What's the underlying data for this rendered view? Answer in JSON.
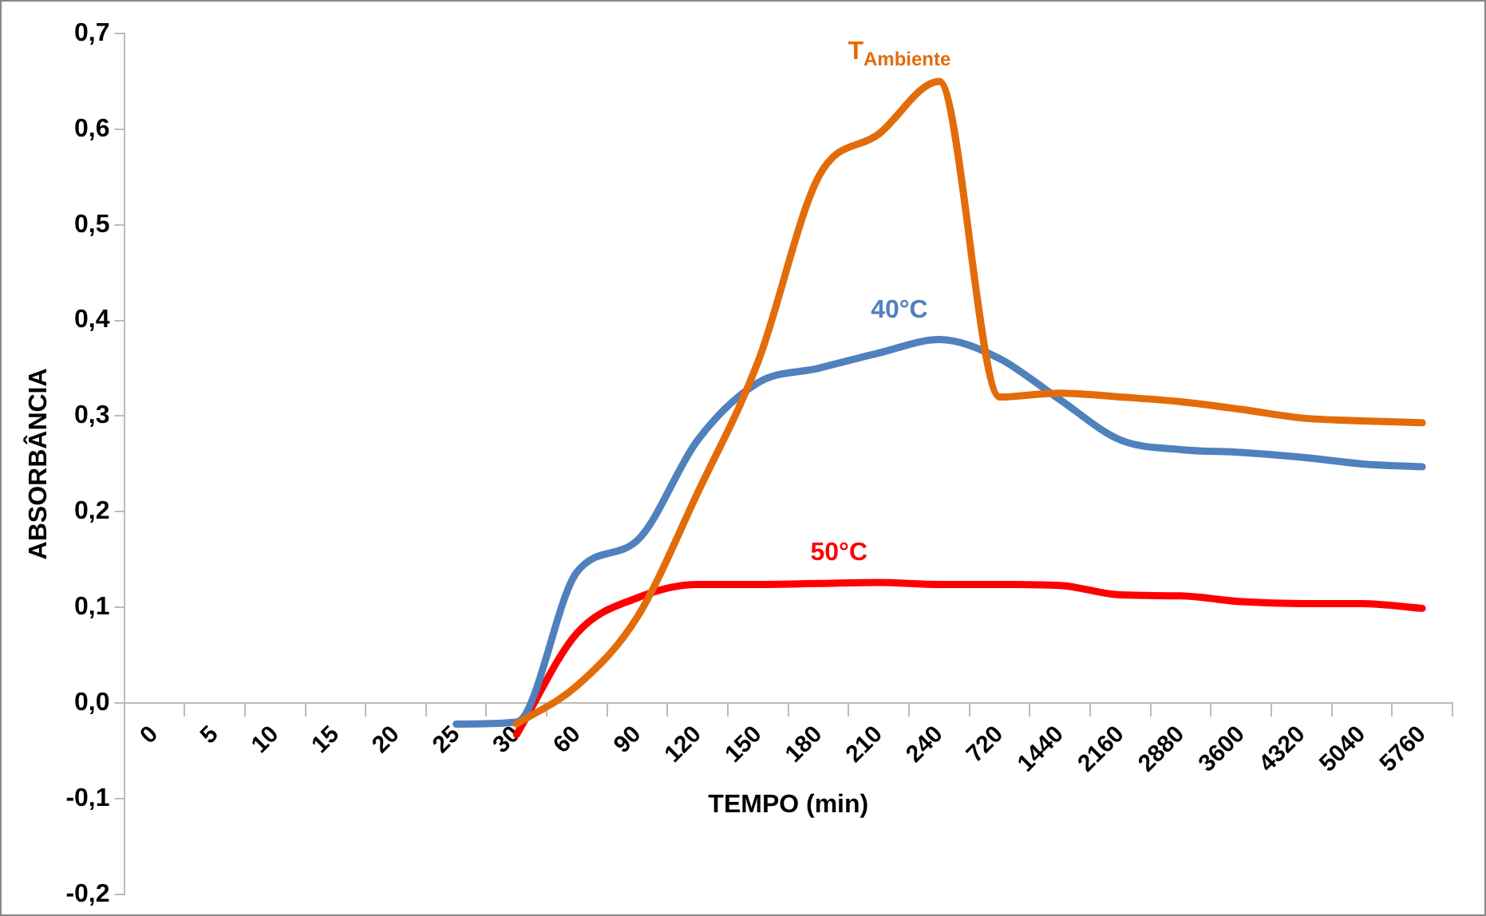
{
  "chart_data": {
    "type": "line",
    "xlabel": "TEMPO (min)",
    "ylabel": "ABSORBÂNCIA",
    "categories": [
      "0",
      "5",
      "10",
      "15",
      "20",
      "25",
      "30",
      "60",
      "90",
      "120",
      "150",
      "180",
      "210",
      "240",
      "720",
      "1440",
      "2160",
      "2880",
      "3600",
      "4320",
      "5040",
      "5760"
    ],
    "series": [
      {
        "name": "T$_{Ambiente}$",
        "color": "#e36c0a",
        "values": [
          null,
          null,
          null,
          null,
          null,
          null,
          -0.022,
          0.018,
          0.09,
          0.22,
          0.357,
          0.55,
          0.595,
          0.65,
          0.32,
          0.324,
          0.32,
          0.315,
          0.307,
          0.298,
          0.295,
          0.293
        ]
      },
      {
        "name": "40°C",
        "color": "#4f81bd",
        "values": [
          null,
          null,
          null,
          null,
          null,
          -0.022,
          -0.02,
          0.137,
          0.17,
          0.275,
          0.335,
          0.35,
          0.366,
          0.38,
          0.36,
          0.317,
          0.275,
          0.265,
          0.262,
          0.257,
          0.25,
          0.247
        ]
      },
      {
        "name": "50°C",
        "color": "#ff0000",
        "values": [
          null,
          null,
          null,
          null,
          null,
          null,
          -0.033,
          0.073,
          0.11,
          0.124,
          0.124,
          0.125,
          0.126,
          0.124,
          0.124,
          0.123,
          0.113,
          0.112,
          0.106,
          0.104,
          0.104,
          0.099
        ]
      }
    ],
    "ylim": [
      -0.2,
      0.7
    ],
    "yticks": [
      {
        "value": -0.2,
        "label": "-0,2"
      },
      {
        "value": -0.1,
        "label": "-0,1"
      },
      {
        "value": 0,
        "label": "0,0"
      },
      {
        "value": 0.1,
        "label": "0,1"
      },
      {
        "value": 0.2,
        "label": "0,2"
      },
      {
        "value": 0.3,
        "label": "0,3"
      },
      {
        "value": 0.4,
        "label": "0,4"
      },
      {
        "value": 0.5,
        "label": "0,5"
      },
      {
        "value": 0.6,
        "label": "0,6"
      },
      {
        "value": 0.7,
        "label": "0,7"
      }
    ],
    "grid": false,
    "legend": false,
    "marker": "none",
    "line_style": "solid"
  }
}
